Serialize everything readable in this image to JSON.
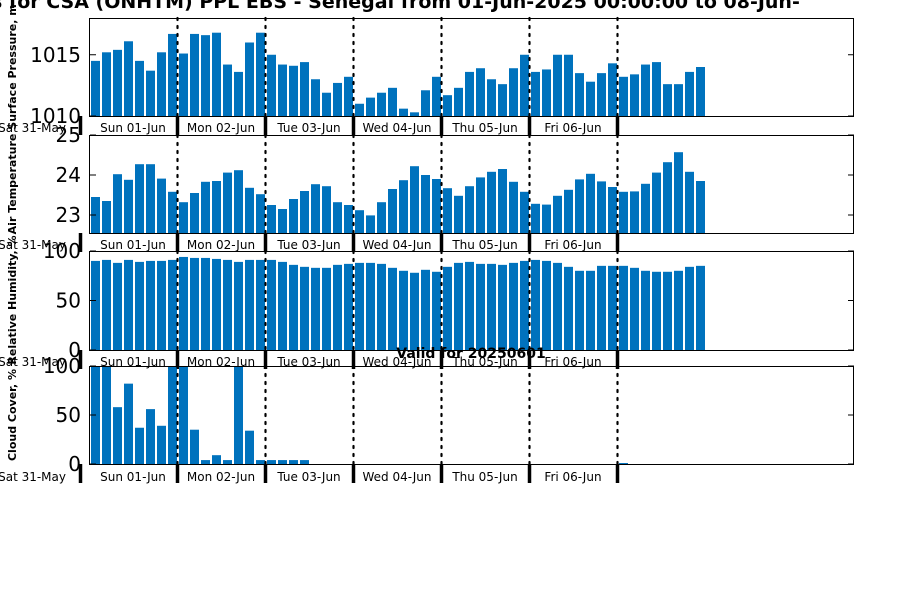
{
  "title": "s for CSA (ONHTM) PPL EBS  - Senegal from 01-Jun-2025 00:00:00 to 08-Jun-",
  "valid_text": "Valid for 20250601",
  "colors": {
    "bar": "#0072bd",
    "axis": "#000000"
  },
  "day_labels": [
    "Sat 31-May",
    "Sun 01-Jun",
    "Mon 02-Jun",
    "Tue 03-Jun",
    "Wed 04-Jun",
    "Thu 05-Jun",
    "Fri 06-Jun"
  ],
  "chart_data": [
    {
      "type": "bar",
      "ylabel": "Surface Pressure, m",
      "ylim": [
        1010,
        1018
      ],
      "yticks": [
        "1010",
        "1015"
      ],
      "grid": false,
      "values": [
        1014.5,
        1015.2,
        1015.4,
        1016.1,
        1014.5,
        1013.7,
        1015.2,
        1016.7,
        1015.1,
        1016.7,
        1016.6,
        1016.8,
        1014.2,
        1013.6,
        1016.0,
        1016.8,
        1015.0,
        1014.2,
        1014.1,
        1014.4,
        1013.0,
        1011.9,
        1012.7,
        1013.2,
        1011.0,
        1011.5,
        1011.9,
        1012.3,
        1010.6,
        1010.3,
        1012.1,
        1013.2,
        1011.7,
        1012.3,
        1013.6,
        1013.9,
        1013.0,
        1012.6,
        1013.9,
        1015.0,
        1013.6,
        1013.8,
        1015.0,
        1015.0,
        1013.5,
        1012.8,
        1013.5,
        1014.3,
        1013.2,
        1013.4,
        1014.2,
        1014.4,
        1012.6,
        1012.6,
        1013.6,
        1014.0
      ]
    },
    {
      "type": "bar",
      "ylabel": "Air Temperature",
      "ylim": [
        22.55,
        25
      ],
      "yticks": [
        "23",
        "24",
        "25"
      ],
      "grid": false,
      "values": [
        23.45,
        23.35,
        24.02,
        23.88,
        24.27,
        24.27,
        23.91,
        23.58,
        23.32,
        23.55,
        23.83,
        23.85,
        24.06,
        24.12,
        23.68,
        23.52,
        23.25,
        23.15,
        23.4,
        23.6,
        23.77,
        23.72,
        23.32,
        23.25,
        23.12,
        22.99,
        23.32,
        23.65,
        23.87,
        24.22,
        24.0,
        23.9,
        23.67,
        23.48,
        23.72,
        23.94,
        24.08,
        24.15,
        23.83,
        23.58,
        23.28,
        23.26,
        23.48,
        23.63,
        23.89,
        24.03,
        23.84,
        23.7,
        23.58,
        23.59,
        23.78,
        24.06,
        24.32,
        24.57,
        24.08,
        23.85
      ]
    },
    {
      "type": "bar",
      "ylabel": "Relative Humidity, %",
      "ylim": [
        0,
        100
      ],
      "yticks": [
        "0",
        "50",
        "100"
      ],
      "grid": false,
      "values": [
        90,
        91,
        88,
        91,
        89,
        90,
        90,
        91,
        94,
        93,
        93,
        92,
        91,
        89,
        91,
        91,
        91,
        89,
        86,
        84,
        83,
        83,
        86,
        87,
        88,
        88,
        87,
        83,
        80,
        78,
        81,
        79,
        84,
        88,
        89,
        87,
        87,
        86,
        88,
        90,
        91,
        90,
        88,
        84,
        80,
        80,
        85,
        85,
        85,
        83,
        80,
        79,
        79,
        80,
        84,
        85
      ]
    },
    {
      "type": "bar",
      "ylabel": "Cloud Cover, %",
      "ylim": [
        0,
        100
      ],
      "yticks": [
        "0",
        "50",
        "100"
      ],
      "grid": false,
      "values": [
        100,
        100,
        58,
        82,
        37,
        56,
        39,
        100,
        100,
        35,
        4,
        9,
        4,
        100,
        34,
        4,
        4,
        4,
        4,
        4,
        0,
        0,
        0,
        0,
        0,
        0,
        0,
        0,
        0,
        0,
        0,
        0,
        0,
        0,
        0,
        0,
        0,
        0,
        0,
        0,
        0,
        0,
        0,
        0,
        0,
        0,
        0,
        0,
        1,
        0,
        0,
        0,
        0,
        0,
        0,
        0
      ]
    }
  ]
}
